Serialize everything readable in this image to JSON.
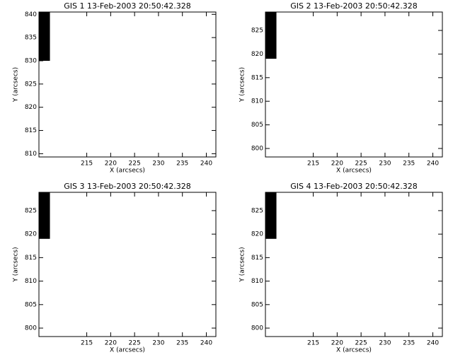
{
  "chart_data": [
    {
      "type": "image",
      "title": "GIS 1 13-Feb-2003 20:50:42.328",
      "xlabel": "X (arcsecs)",
      "ylabel": "Y (arcsecs)",
      "xlim": [
        205,
        242
      ],
      "ylim": [
        809.3,
        840.5
      ],
      "xticks": [
        215,
        220,
        225,
        230,
        235,
        240
      ],
      "yticks": [
        810,
        815,
        820,
        825,
        830,
        835,
        840
      ],
      "region": {
        "x": [
          205,
          207.3
        ],
        "y": [
          830,
          840.5
        ],
        "color": "#000000"
      }
    },
    {
      "type": "image",
      "title": "GIS 2 13-Feb-2003 20:50:42.328",
      "xlabel": "X (arcsecs)",
      "ylabel": "Y (arcsecs)",
      "xlim": [
        205,
        242
      ],
      "ylim": [
        798.2,
        828.9
      ],
      "xticks": [
        215,
        220,
        225,
        230,
        235,
        240
      ],
      "yticks": [
        800,
        805,
        810,
        815,
        820,
        825
      ],
      "region": {
        "x": [
          205,
          207.3
        ],
        "y": [
          819,
          828.9
        ],
        "color": "#000000"
      }
    },
    {
      "type": "image",
      "title": "GIS 3 13-Feb-2003 20:50:42.328",
      "xlabel": "X (arcsecs)",
      "ylabel": "Y (arcsecs)",
      "xlim": [
        205,
        242
      ],
      "ylim": [
        798.2,
        828.9
      ],
      "xticks": [
        215,
        220,
        225,
        230,
        235,
        240
      ],
      "yticks": [
        800,
        805,
        810,
        815,
        820,
        825
      ],
      "region": {
        "x": [
          205,
          207.3
        ],
        "y": [
          819,
          828.9
        ],
        "color": "#000000"
      }
    },
    {
      "type": "image",
      "title": "GIS 4 13-Feb-2003 20:50:42.328",
      "xlabel": "X (arcsecs)",
      "ylabel": "Y (arcsecs)",
      "xlim": [
        205,
        242
      ],
      "ylim": [
        798.2,
        828.9
      ],
      "xticks": [
        215,
        220,
        225,
        230,
        235,
        240
      ],
      "yticks": [
        800,
        805,
        810,
        815,
        820,
        825
      ],
      "region": {
        "x": [
          205,
          207.3
        ],
        "y": [
          819,
          828.9
        ],
        "color": "#000000"
      }
    }
  ]
}
